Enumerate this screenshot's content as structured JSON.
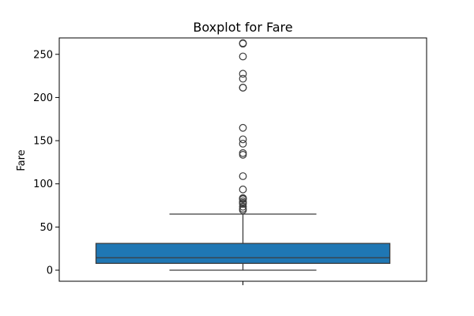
{
  "chart_data": {
    "type": "box",
    "title": "Boxplot for Fare",
    "xlabel": "",
    "ylabel": "Fare",
    "ylim": [
      -12.8,
      269.0
    ],
    "yticks": [
      0,
      50,
      100,
      150,
      200,
      250
    ],
    "grid": false,
    "legend": "none",
    "box": {
      "min": 0,
      "q1": 7.9,
      "median": 14.45,
      "q3": 31.0,
      "whisker_high": 65.0
    },
    "outliers": [
      69.55,
      71.28,
      73.5,
      76.73,
      77.96,
      79.65,
      82.17,
      83.16,
      83.48,
      93.5,
      108.9,
      133.65,
      135.63,
      146.52,
      151.55,
      164.87,
      211.34,
      211.5,
      221.78,
      227.53,
      247.52,
      262.38,
      263.0
    ],
    "colors": {
      "box_fill": "#1f77b4",
      "line": "#3d3d3d",
      "outlier_edge": "#3d3d3d"
    }
  }
}
